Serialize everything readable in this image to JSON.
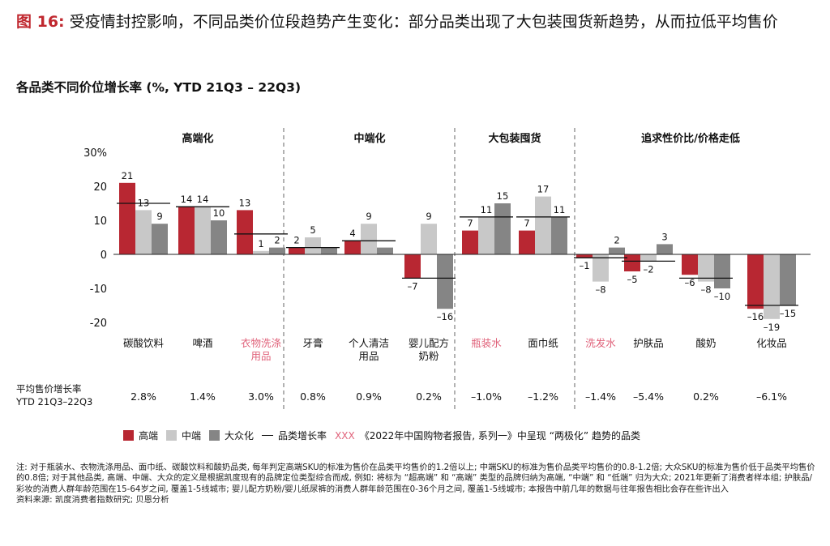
{
  "figure": {
    "number_label": "图 16:",
    "title": "受疫情封控影响，不同品类价位段趋势产生变化：部分品类出现了大包装囤货新趋势，从而拉低平均售价",
    "subtitle": "各品类不同价位增长率 (%, YTD 21Q3 – 22Q3)"
  },
  "chart_data": {
    "type": "bar",
    "ylim": [
      -20,
      30
    ],
    "y_ticks": [
      "30%",
      "20",
      "10",
      "0",
      "-10",
      "-20"
    ],
    "groups": [
      {
        "label": "高端化",
        "categories": [
          0,
          1,
          2
        ]
      },
      {
        "label": "中端化",
        "categories": [
          3,
          4,
          5
        ]
      },
      {
        "label": "大包装囤货",
        "categories": [
          6,
          7
        ]
      },
      {
        "label": "追求性价比/价格走低",
        "categories": [
          8,
          9,
          10,
          11
        ]
      }
    ],
    "categories": [
      {
        "name": [
          "碳酸饮料"
        ],
        "highlight": false
      },
      {
        "name": [
          "啤酒"
        ],
        "highlight": false
      },
      {
        "name": [
          "衣物洗涤",
          "用品"
        ],
        "highlight": true
      },
      {
        "name": [
          "牙膏"
        ],
        "highlight": false
      },
      {
        "name": [
          "个人清洁",
          "用品"
        ],
        "highlight": false
      },
      {
        "name": [
          "婴儿配方",
          "奶粉"
        ],
        "highlight": false
      },
      {
        "name": [
          "瓶装水"
        ],
        "highlight": true
      },
      {
        "name": [
          "面巾纸"
        ],
        "highlight": false
      },
      {
        "name": [
          "洗发水"
        ],
        "highlight": true
      },
      {
        "name": [
          "护肤品"
        ],
        "highlight": false
      },
      {
        "name": [
          "酸奶"
        ],
        "highlight": false
      },
      {
        "name": [
          "化妆品"
        ],
        "highlight": false
      }
    ],
    "series": [
      {
        "name": "高端",
        "color": "#b82732",
        "values": [
          21,
          14,
          13,
          2,
          4,
          -7,
          7,
          7,
          -1,
          -5,
          -6,
          -16
        ],
        "labels": [
          "21",
          "14",
          "13",
          "2",
          "4",
          "–7",
          "7",
          "7",
          "–1",
          "–5",
          "–6",
          "–16"
        ]
      },
      {
        "name": "中端",
        "color": "#c8c8c8",
        "values": [
          13,
          14,
          1,
          5,
          9,
          9,
          11,
          17,
          -8,
          -2,
          -8,
          -19
        ],
        "labels": [
          "13",
          "14",
          "1",
          "5",
          "9",
          "9",
          "11",
          "17",
          "–8",
          "–2",
          "–8",
          "–19"
        ]
      },
      {
        "name": "大众化",
        "color": "#858585",
        "values": [
          9,
          10,
          2,
          2,
          2,
          -16,
          15,
          11,
          2,
          3,
          -10,
          -15
        ],
        "labels": [
          "9",
          "10",
          "2",
          "",
          "",
          "–16",
          "15",
          "11",
          "2",
          "3",
          "–10",
          "–15"
        ]
      }
    ],
    "category_growth": [
      15,
      14,
      6,
      2,
      4,
      -7,
      11,
      11,
      -1,
      -2,
      -7,
      -15
    ],
    "avg_price_row": {
      "label": [
        "平均售价增长率",
        "YTD 21Q3–22Q3"
      ],
      "values": [
        "2.8%",
        "1.4%",
        "3.0%",
        "0.8%",
        "0.9%",
        "0.2%",
        "–1.0%",
        "–1.2%",
        "–1.4%",
        "–5.4%",
        "0.2%",
        "–6.1%"
      ]
    }
  },
  "legend": {
    "items": [
      {
        "label": "高端",
        "color": "#b82732"
      },
      {
        "label": "中端",
        "color": "#c8c8c8"
      },
      {
        "label": "大众化",
        "color": "#858585"
      }
    ],
    "line_label": "品类增长率",
    "highlight_marker": "XXX",
    "highlight_text": "《2022年中国购物者报告, 系列一》中呈现 “两极化” 趋势的品类"
  },
  "notes": {
    "text": "注: 对于瓶装水、衣物洗涤用品、面巾纸、碳酸饮料和酸奶品类, 每年判定高端SKU的标准为售价在品类平均售价的1.2倍以上; 中端SKU的标准为售价品类平均售价的0.8-1.2倍; 大众SKU的标准为售价低于品类平均售价的0.8倍; 对于其他品类, 高端、中端、大众的定义是根据凯度现有的品牌定位类型综合而成, 例如: 将标为 “超高端” 和 “高端” 类型的品牌归纳为高端, “中端” 和 “低端” 归为大众; 2021年更新了消费者样本组; 护肤品/彩妆的消费人群年龄范围在15-64岁之间, 覆盖1-5线城市; 婴儿配方奶粉/婴儿纸尿裤的消费人群年龄范围在0-36个月之间, 覆盖1-5线城市; 本报告中前几年的数据与往年报告相比会存在些许出入",
    "source": "资料来源: 凯度消费者指数研究; 贝恩分析"
  }
}
